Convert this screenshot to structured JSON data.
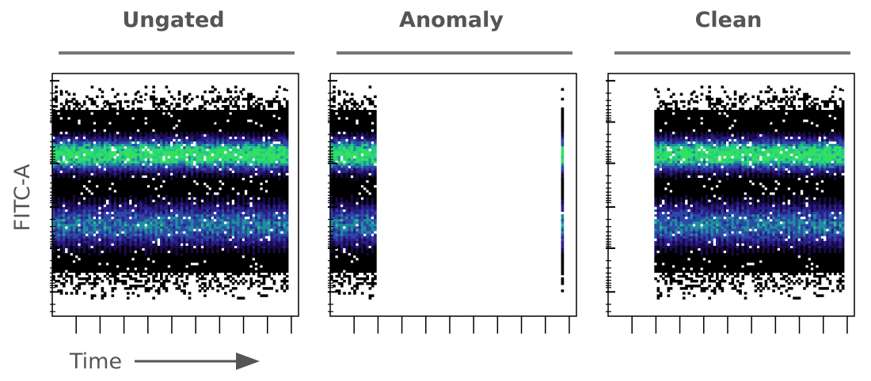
{
  "chart_data": [
    {
      "type": "scatter",
      "title": "Ungated",
      "xlabel": "Time",
      "ylabel": "FITC-A",
      "x_extent": [
        0,
        1
      ],
      "time_coverage": [
        [
          0.0,
          0.95
        ]
      ],
      "density_bands": [
        {
          "center": 0.33,
          "width": 0.16,
          "level": 1.0
        },
        {
          "center": 0.62,
          "width": 0.22,
          "level": 0.6
        }
      ]
    },
    {
      "type": "scatter",
      "title": "Anomaly",
      "xlabel": "",
      "ylabel": "",
      "x_extent": [
        0,
        1
      ],
      "time_coverage": [
        [
          0.0,
          0.18
        ],
        [
          0.935,
          0.945
        ]
      ],
      "density_bands": [
        {
          "center": 0.33,
          "width": 0.16,
          "level": 1.0
        },
        {
          "center": 0.62,
          "width": 0.22,
          "level": 0.6
        }
      ]
    },
    {
      "type": "scatter",
      "title": "Clean",
      "xlabel": "",
      "ylabel": "",
      "x_extent": [
        0,
        1
      ],
      "time_coverage": [
        [
          0.18,
          0.95
        ]
      ],
      "density_bands": [
        {
          "center": 0.33,
          "width": 0.16,
          "level": 1.0
        },
        {
          "center": 0.62,
          "width": 0.22,
          "level": 0.6
        }
      ]
    }
  ],
  "colors": {
    "frame": "#000000",
    "title_bar": "#777777",
    "label_text": "#555555",
    "arrow": "#555555",
    "colormap": [
      "#000000",
      "#1a0a4a",
      "#2a1f8a",
      "#2d49a6",
      "#1f8ea0",
      "#22c98a",
      "#33e060"
    ]
  }
}
